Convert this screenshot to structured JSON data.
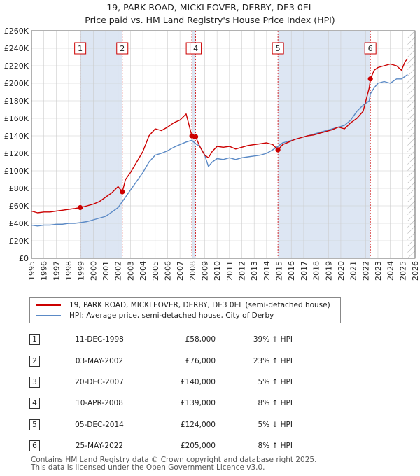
{
  "title_line1": "19, PARK ROAD, MICKLEOVER, DERBY, DE3 0EL",
  "title_line2": "Price paid vs. HM Land Registry's House Price Index (HPI)",
  "colors": {
    "property": "#cc0000",
    "hpi": "#5b8ac6",
    "shade": "#dde6f3",
    "grid": "#cccccc"
  },
  "chart_data": {
    "type": "line",
    "ylim": [
      0,
      260000
    ],
    "xlim": [
      1995,
      2026
    ],
    "y_ticks": [
      0,
      20000,
      40000,
      60000,
      80000,
      100000,
      120000,
      140000,
      160000,
      180000,
      200000,
      220000,
      240000,
      260000
    ],
    "y_tick_labels": [
      "£0",
      "£20K",
      "£40K",
      "£60K",
      "£80K",
      "£100K",
      "£120K",
      "£140K",
      "£160K",
      "£180K",
      "£200K",
      "£220K",
      "£240K",
      "£260K"
    ],
    "x_ticks": [
      1995,
      1996,
      1997,
      1998,
      1999,
      2000,
      2001,
      2002,
      2003,
      2004,
      2005,
      2006,
      2007,
      2008,
      2009,
      2010,
      2011,
      2012,
      2013,
      2014,
      2015,
      2016,
      2017,
      2018,
      2019,
      2020,
      2021,
      2022,
      2023,
      2024,
      2025,
      2026
    ],
    "x_tick_labels": [
      "1995",
      "1996",
      "1997",
      "1998",
      "1999",
      "2000",
      "2001",
      "2002",
      "2003",
      "2004",
      "2005",
      "2006",
      "2007",
      "2008",
      "2009",
      "2010",
      "2011",
      "2012",
      "2013",
      "2014",
      "2015",
      "2016",
      "2017",
      "2018",
      "2019",
      "2020",
      "2021",
      "2022",
      "2023",
      "2024",
      "2025",
      "2026"
    ],
    "future_after": 2025.4,
    "series": [
      {
        "name": "19, PARK ROAD, MICKLEOVER, DERBY, DE3 0EL (semi-detached house)",
        "color": "#cc0000",
        "x": [
          1995.0,
          1995.5,
          1996.0,
          1996.5,
          1997.0,
          1997.5,
          1998.0,
          1998.5,
          1998.94,
          1999.5,
          2000.0,
          2000.5,
          2001.0,
          2001.5,
          2002.0,
          2002.34,
          2002.6,
          2003.0,
          2003.5,
          2004.0,
          2004.5,
          2005.0,
          2005.5,
          2006.0,
          2006.5,
          2007.0,
          2007.5,
          2007.96,
          2008.1,
          2008.27,
          2008.6,
          2009.0,
          2009.3,
          2009.6,
          2010.0,
          2010.5,
          2011.0,
          2011.5,
          2012.0,
          2012.5,
          2013.0,
          2013.5,
          2014.0,
          2014.5,
          2014.92,
          2015.3,
          2015.8,
          2016.3,
          2016.8,
          2017.3,
          2017.8,
          2018.3,
          2018.8,
          2019.3,
          2019.8,
          2020.3,
          2020.8,
          2021.3,
          2021.8,
          2022.3,
          2022.39,
          2022.7,
          2023.0,
          2023.5,
          2024.0,
          2024.5,
          2024.9,
          2025.2,
          2025.4
        ],
        "values": [
          54000,
          52000,
          53000,
          53000,
          54000,
          55000,
          56000,
          57000,
          58000,
          60000,
          62000,
          65000,
          70000,
          75000,
          82000,
          76000,
          90000,
          98000,
          110000,
          122000,
          140000,
          148000,
          146000,
          150000,
          155000,
          158000,
          165000,
          140000,
          137000,
          139000,
          128000,
          118000,
          115000,
          122000,
          128000,
          127000,
          128000,
          125000,
          127000,
          129000,
          130000,
          131000,
          132000,
          130000,
          124000,
          130000,
          133000,
          136000,
          138000,
          140000,
          141000,
          143000,
          145000,
          147000,
          150000,
          148000,
          155000,
          160000,
          168000,
          195000,
          205000,
          215000,
          218000,
          220000,
          222000,
          220000,
          215000,
          225000,
          228000
        ]
      },
      {
        "name": "HPI: Average price, semi-detached house, City of Derby",
        "color": "#5b8ac6",
        "x": [
          1995.0,
          1995.5,
          1996.0,
          1996.5,
          1997.0,
          1997.5,
          1998.0,
          1998.5,
          1999.0,
          1999.5,
          2000.0,
          2000.5,
          2001.0,
          2001.5,
          2002.0,
          2002.5,
          2003.0,
          2003.5,
          2004.0,
          2004.5,
          2005.0,
          2005.5,
          2006.0,
          2006.5,
          2007.0,
          2007.5,
          2007.96,
          2008.27,
          2008.6,
          2009.0,
          2009.3,
          2009.6,
          2010.0,
          2010.5,
          2011.0,
          2011.5,
          2012.0,
          2012.5,
          2013.0,
          2013.5,
          2014.0,
          2014.5,
          2014.92,
          2015.3,
          2015.8,
          2016.3,
          2016.8,
          2017.3,
          2017.8,
          2018.3,
          2018.8,
          2019.3,
          2019.8,
          2020.3,
          2020.8,
          2021.3,
          2021.8,
          2022.3,
          2022.39,
          2022.7,
          2023.0,
          2023.5,
          2024.0,
          2024.5,
          2024.9,
          2025.2,
          2025.4
        ],
        "values": [
          38000,
          37000,
          38000,
          38000,
          39000,
          39000,
          40000,
          40000,
          41000,
          42000,
          44000,
          46000,
          48000,
          53000,
          58000,
          68000,
          78000,
          88000,
          98000,
          110000,
          118000,
          120000,
          123000,
          127000,
          130000,
          133000,
          135000,
          131000,
          128000,
          118000,
          105000,
          110000,
          114000,
          113000,
          115000,
          113000,
          115000,
          116000,
          117000,
          118000,
          120000,
          124000,
          128000,
          132000,
          134000,
          136000,
          138000,
          140000,
          142000,
          144000,
          146000,
          148000,
          150000,
          152000,
          158000,
          168000,
          175000,
          180000,
          188000,
          195000,
          200000,
          202000,
          200000,
          205000,
          205000,
          208000,
          210000
        ]
      }
    ],
    "sales": [
      {
        "n": "1",
        "x": 1998.94,
        "value": 58000
      },
      {
        "n": "2",
        "x": 2002.34,
        "value": 76000
      },
      {
        "n": "3",
        "x": 2007.96,
        "value": 140000
      },
      {
        "n": "4",
        "x": 2008.27,
        "value": 139000
      },
      {
        "n": "5",
        "x": 2014.92,
        "value": 124000
      },
      {
        "n": "6",
        "x": 2022.39,
        "value": 205000
      }
    ]
  },
  "legend": {
    "property": "19, PARK ROAD, MICKLEOVER, DERBY, DE3 0EL (semi-detached house)",
    "hpi": "HPI: Average price, semi-detached house, City of Derby"
  },
  "transactions": [
    {
      "n": "1",
      "date": "11-DEC-1998",
      "price": "£58,000",
      "hpi": "39% ↑ HPI"
    },
    {
      "n": "2",
      "date": "03-MAY-2002",
      "price": "£76,000",
      "hpi": "23% ↑ HPI"
    },
    {
      "n": "3",
      "date": "20-DEC-2007",
      "price": "£140,000",
      "hpi": "5% ↑ HPI"
    },
    {
      "n": "4",
      "date": "10-APR-2008",
      "price": "£139,000",
      "hpi": "8% ↑ HPI"
    },
    {
      "n": "5",
      "date": "05-DEC-2014",
      "price": "£124,000",
      "hpi": "5% ↓ HPI"
    },
    {
      "n": "6",
      "date": "25-MAY-2022",
      "price": "£205,000",
      "hpi": "8% ↑ HPI"
    }
  ],
  "footer_line1": "Contains HM Land Registry data © Crown copyright and database right 2025.",
  "footer_line2": "This data is licensed under the Open Government Licence v3.0."
}
